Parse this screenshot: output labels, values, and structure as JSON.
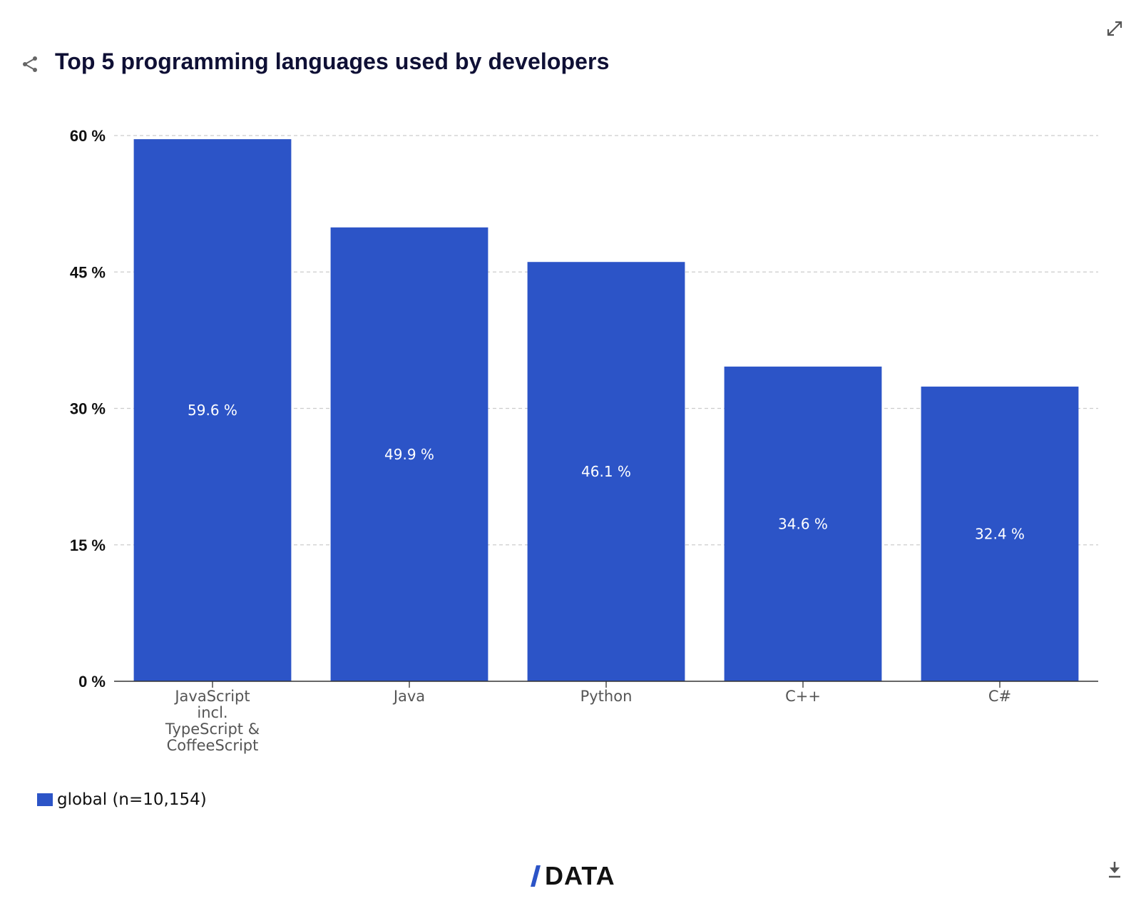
{
  "header": {
    "title": "Top 5 programming languages used by developers"
  },
  "icons": {
    "share": "share-icon",
    "expand": "expand-icon",
    "download": "download-icon"
  },
  "colors": {
    "bar": "#2c54c7",
    "title": "#0f1035",
    "grid": "#cccccc",
    "axis": "#333333",
    "brand_slash": "#2c54c7"
  },
  "chart_data": {
    "type": "bar",
    "title": "Top 5 programming languages used by developers",
    "categories": [
      [
        "JavaScript",
        "incl.",
        "TypeScript &",
        "CoffeeScript"
      ],
      [
        "Java"
      ],
      [
        "Python"
      ],
      [
        "C++"
      ],
      [
        "C#"
      ]
    ],
    "values": [
      59.6,
      49.9,
      46.1,
      34.6,
      32.4
    ],
    "value_labels": [
      "59.6 %",
      "49.9 %",
      "46.1 %",
      "34.6 %",
      "32.4 %"
    ],
    "yticks": [
      0,
      15,
      30,
      45,
      60
    ],
    "ytick_labels": [
      "0 %",
      "15 %",
      "30 %",
      "45 %",
      "60 %"
    ],
    "ylim": [
      0,
      60
    ],
    "xlabel": "",
    "ylabel": "",
    "grid": true,
    "legend_position": "bottom-left",
    "series_name": "global (n=10,154)"
  },
  "legend": {
    "label": "global (n=10,154)"
  },
  "brand": {
    "text": "DATA"
  }
}
